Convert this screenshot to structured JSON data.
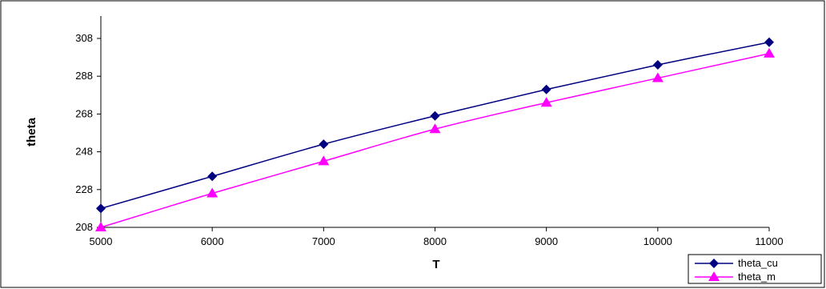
{
  "chart_data": {
    "type": "line",
    "title": "",
    "xlabel": "T",
    "ylabel": "theta",
    "x": [
      5000,
      6000,
      7000,
      8000,
      9000,
      10000,
      11000
    ],
    "xlim": [
      5000,
      11000
    ],
    "ylim": [
      208,
      318
    ],
    "xticks": [
      "5000",
      "6000",
      "7000",
      "8000",
      "9000",
      "10000",
      "11000"
    ],
    "yticks": [
      "208",
      "228",
      "248",
      "268",
      "288",
      "308"
    ],
    "series": [
      {
        "name": "theta_cu",
        "values": [
          218,
          235,
          252,
          267,
          281,
          294,
          306
        ],
        "color": "#000080",
        "marker": "diamond"
      },
      {
        "name": "theta_m",
        "values": [
          208,
          226,
          243,
          260,
          274,
          287,
          300
        ],
        "color": "#ff00ff",
        "marker": "triangle"
      }
    ],
    "grid": false,
    "legend_position": "bottom-right"
  }
}
